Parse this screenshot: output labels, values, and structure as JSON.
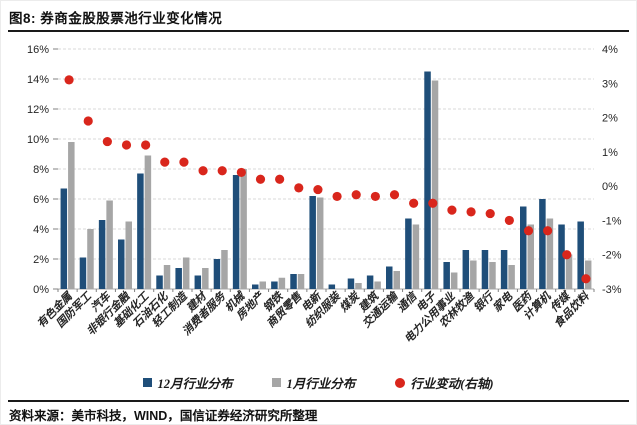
{
  "figure": {
    "title": "图8: 券商金股股票池行业变化情况",
    "source": "资料来源：美市科技，WIND，国信证券经济研究所整理"
  },
  "colors": {
    "bar_december": "#1F4E79",
    "bar_january": "#A6A6A6",
    "change_dot": "#D9261C",
    "gridline": "#D9D9D9",
    "axis_line": "#A9A9A9",
    "tick_text": "#262626"
  },
  "chart_data": {
    "type": "bar",
    "title": "券商金股股票池行业变化情况",
    "categories": [
      "有色金属",
      "国防军工",
      "汽车",
      "非银行金融",
      "基础化工",
      "石油石化",
      "轻工制造",
      "建材",
      "消费者服务",
      "机械",
      "房地产",
      "钢铁",
      "商贸零售",
      "电新",
      "纺织服装",
      "煤炭",
      "建筑",
      "交通运输",
      "通信",
      "电子",
      "电力公用事业",
      "农林牧渔",
      "银行",
      "家电",
      "医药",
      "计算机",
      "传媒",
      "食品饮料"
    ],
    "series": [
      {
        "name": "12月行业分布",
        "kind": "bar",
        "axis": "left",
        "color": "#1F4E79",
        "values": [
          6.7,
          2.1,
          4.6,
          3.3,
          7.7,
          0.9,
          1.4,
          0.9,
          2.0,
          7.6,
          0.3,
          0.5,
          1.0,
          6.2,
          0.3,
          0.7,
          0.9,
          1.5,
          4.7,
          14.5,
          1.8,
          2.6,
          2.6,
          2.6,
          5.5,
          6.0,
          4.3,
          4.5
        ]
      },
      {
        "name": "1月行业分布",
        "kind": "bar",
        "axis": "left",
        "color": "#A6A6A6",
        "values": [
          9.8,
          4.0,
          5.9,
          4.5,
          8.9,
          1.6,
          2.1,
          1.4,
          2.6,
          8.0,
          0.5,
          0.75,
          1.0,
          6.1,
          0.0,
          0.4,
          0.5,
          1.2,
          4.3,
          13.9,
          1.1,
          1.9,
          1.8,
          1.6,
          4.3,
          4.7,
          2.3,
          1.9
        ]
      },
      {
        "name": "行业变动(右轴)",
        "kind": "scatter",
        "axis": "right",
        "color": "#D9261C",
        "values": [
          3.1,
          1.9,
          1.3,
          1.2,
          1.2,
          0.7,
          0.7,
          0.45,
          0.45,
          0.4,
          0.2,
          0.2,
          -0.05,
          -0.1,
          -0.3,
          -0.25,
          -0.3,
          -0.25,
          -0.5,
          -0.5,
          -0.7,
          -0.75,
          -0.8,
          -1.0,
          -1.3,
          -1.3,
          -2.0,
          -2.7
        ]
      }
    ],
    "left_axis": {
      "min": 0,
      "max": 16,
      "step": 2,
      "tick_labels": [
        "0%",
        "2%",
        "4%",
        "6%",
        "8%",
        "10%",
        "12%",
        "14%",
        "16%"
      ]
    },
    "right_axis": {
      "min": -3,
      "max": 4,
      "step": 1,
      "tick_labels": [
        "-3%",
        "-2%",
        "-1%",
        "0%",
        "1%",
        "2%",
        "3%",
        "4%"
      ]
    },
    "grid": "dashed-horizontal",
    "legend_position": "bottom",
    "x_label_rotation": -45
  }
}
